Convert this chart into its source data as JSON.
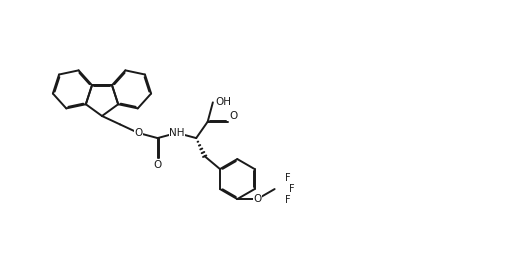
{
  "bg": "#ffffff",
  "lc": "#1a1a1a",
  "lw": 1.4,
  "lw_thin": 1.0,
  "bl": 0.2,
  "figsize": [
    5.08,
    2.64
  ],
  "dpi": 100,
  "xlim": [
    0,
    5.08
  ],
  "ylim": [
    0,
    2.64
  ],
  "font_size": 7.5,
  "font_size_small": 7.0
}
